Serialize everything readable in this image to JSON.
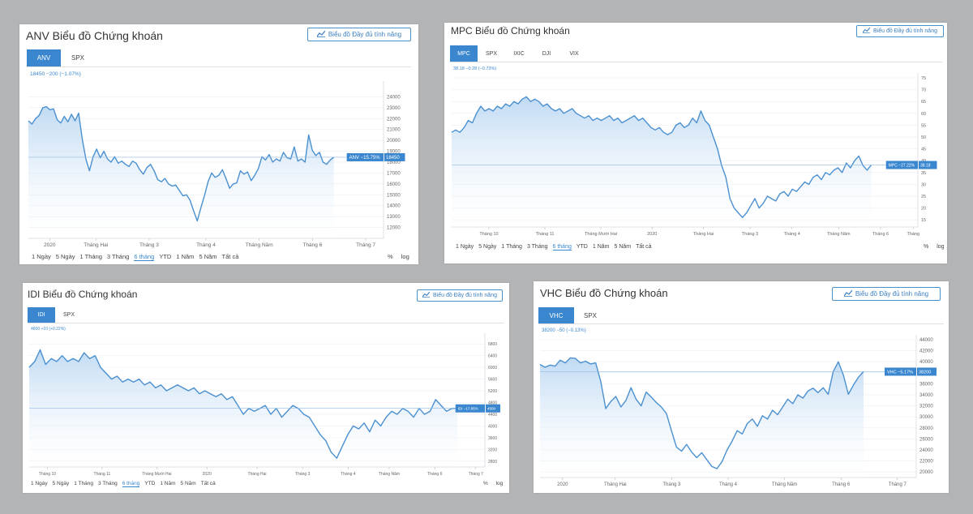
{
  "charts": [
    {
      "title": "ANV Biểu đồ Chứng khoán",
      "full_button": "Biểu đồ Đầy đủ tính năng",
      "tabs": [
        "ANV",
        "SPX"
      ],
      "active_tab": 0,
      "quote": "18450 −200 (−1.07%)",
      "price_tag": "ANV −15.75%",
      "price_value": "18450",
      "ranges": [
        "1 Ngày",
        "5 Ngày",
        "1 Tháng",
        "3 Tháng",
        "6 tháng",
        "YTD",
        "1 Năm",
        "5 Năm",
        "Tất cả"
      ],
      "selected_range": 4,
      "options": [
        "%",
        "log"
      ]
    },
    {
      "title": "MPC Biểu đồ Chứng khoán",
      "full_button": "Biểu đồ Đầy đủ tính năng",
      "tabs": [
        "MPC",
        "SPX",
        "IXIC",
        "DJI",
        "VIX"
      ],
      "active_tab": 0,
      "quote": "38.18 −0.28 (−0.73%)",
      "price_tag": "MPC −27.22%",
      "price_value": "38.18",
      "ranges": [
        "1 Ngày",
        "5 Ngày",
        "1 Tháng",
        "3 Tháng",
        "6 tháng",
        "YTD",
        "1 Năm",
        "5 Năm",
        "Tất cả"
      ],
      "selected_range": 4,
      "options": [
        "%",
        "log"
      ]
    },
    {
      "title": "IDI Biểu đồ Chứng khoán",
      "full_button": "Biểu đồ Đầy đủ tính năng",
      "tabs": [
        "IDI",
        "SPX"
      ],
      "active_tab": 0,
      "quote": "4600 +10 (+0.22%)",
      "price_tag": "IDI −17.85%",
      "price_value": "4600",
      "ranges": [
        "1 Ngày",
        "5 Ngày",
        "1 Tháng",
        "3 Tháng",
        "6 tháng",
        "YTD",
        "1 Năm",
        "5 Năm",
        "Tất cả"
      ],
      "selected_range": 4,
      "options": [
        "%",
        "log"
      ]
    },
    {
      "title": "VHC Biểu đồ Chứng khoán",
      "full_button": "Biểu đồ Đầy đủ tính năng",
      "tabs": [
        "VHC",
        "SPX"
      ],
      "active_tab": 0,
      "quote": "38200 −50 (−0.13%)",
      "price_tag": "VHC −5.17%",
      "price_value": "38200",
      "ranges": [],
      "selected_range": -1,
      "options": []
    }
  ],
  "colors": {
    "line": "#4a90d0",
    "accent": "#3a87d0",
    "fill_top": "#b9d6f2",
    "grid": "#e9eef3"
  },
  "chart_data": [
    {
      "type": "area",
      "title": "ANV Biểu đồ Chứng khoán",
      "ylim": [
        11000,
        25000
      ],
      "yticks": [
        12000,
        13000,
        14000,
        15000,
        16000,
        17000,
        18000,
        19000,
        20000,
        21000,
        22000,
        23000,
        24000
      ],
      "xticks": [
        "2020",
        "Tháng Hai",
        "Tháng 3",
        "Tháng 4",
        "Tháng Năm",
        "Tháng 6",
        "Tháng 7"
      ],
      "xtick_pos": [
        0.06,
        0.19,
        0.34,
        0.5,
        0.65,
        0.8,
        0.95
      ],
      "last_value": 18450,
      "series": [
        {
          "name": "ANV",
          "values": [
            21800,
            21500,
            22000,
            22300,
            23000,
            23100,
            22800,
            22900,
            21900,
            21600,
            22200,
            21700,
            22400,
            21800,
            22500,
            20100,
            18300,
            17200,
            18500,
            19200,
            18400,
            19000,
            18300,
            18000,
            18500,
            17900,
            18100,
            17800,
            17600,
            18100,
            17900,
            17300,
            16900,
            17500,
            17800,
            17200,
            16400,
            16200,
            16500,
            16000,
            15800,
            15900,
            15400,
            14900,
            15000,
            14500,
            13500,
            12600,
            13800,
            14900,
            16200,
            17000,
            16600,
            16800,
            17300,
            16500,
            15600,
            16000,
            16100,
            17200,
            16900,
            17100,
            16300,
            16800,
            17400,
            18500,
            18200,
            18700,
            18000,
            18300,
            18100,
            18900,
            18400,
            18300,
            19400,
            18100,
            18300,
            18000,
            20500,
            19100,
            18600,
            18900,
            18000,
            17800,
            18200,
            18450
          ]
        }
      ]
    },
    {
      "type": "area",
      "title": "MPC Biểu đồ Chứng khoán",
      "ylim": [
        12,
        75
      ],
      "yticks": [
        15,
        20,
        25,
        30,
        35,
        40,
        45,
        50,
        55,
        60,
        65,
        70,
        75
      ],
      "xticks": [
        "Tháng 10",
        "Tháng 11",
        "Tháng Mười Hai",
        "2020",
        "Tháng Hai",
        "Tháng 3",
        "Tháng 4",
        "Tháng Năm",
        "Tháng 6",
        "Tháng"
      ],
      "xtick_pos": [
        0.08,
        0.2,
        0.32,
        0.43,
        0.54,
        0.64,
        0.73,
        0.83,
        0.92,
        0.99
      ],
      "last_value": 38.18,
      "series": [
        {
          "name": "MPC",
          "values": [
            52,
            53,
            52,
            54,
            57,
            56,
            60,
            63,
            61,
            62,
            61,
            63,
            62,
            64,
            63,
            65,
            64,
            66,
            67,
            65,
            66,
            65,
            63,
            64,
            62,
            61,
            62,
            60,
            61,
            62,
            60,
            59,
            58,
            59,
            57,
            58,
            57,
            58,
            59,
            57,
            58,
            56,
            57,
            58,
            59,
            57,
            58,
            56,
            54,
            53,
            54,
            52,
            51,
            52,
            55,
            56,
            54,
            55,
            58,
            56,
            61,
            57,
            55,
            50,
            45,
            38,
            33,
            24,
            20,
            18,
            16,
            18,
            21,
            24,
            20,
            22,
            25,
            24,
            23,
            26,
            27,
            25,
            28,
            27,
            29,
            31,
            30,
            33,
            34,
            32,
            35,
            34,
            36,
            37,
            35,
            39,
            37,
            40,
            42,
            38,
            36,
            38.18
          ]
        }
      ]
    },
    {
      "type": "area",
      "title": "IDI Biểu đồ Chứng khoán",
      "ylim": [
        2600,
        7000
      ],
      "yticks": [
        2800,
        3200,
        3600,
        4000,
        4400,
        4800,
        5200,
        5600,
        6000,
        6400,
        6800
      ],
      "xticks": [
        "Tháng 10",
        "Tháng 11",
        "Tháng Mười Hai",
        "2020",
        "Tháng Hai",
        "Tháng 3",
        "Tháng 4",
        "Tháng Năm",
        "Tháng 6",
        "Tháng 7"
      ],
      "xtick_pos": [
        0.04,
        0.16,
        0.28,
        0.39,
        0.5,
        0.6,
        0.7,
        0.79,
        0.89,
        0.98
      ],
      "last_value": 4600,
      "series": [
        {
          "name": "IDI",
          "values": [
            6000,
            6200,
            6600,
            6100,
            6300,
            6200,
            6400,
            6200,
            6300,
            6200,
            6500,
            6300,
            6400,
            6000,
            5800,
            5600,
            5700,
            5500,
            5600,
            5500,
            5600,
            5400,
            5500,
            5300,
            5400,
            5200,
            5300,
            5400,
            5300,
            5200,
            5300,
            5100,
            5200,
            5100,
            5000,
            5100,
            4900,
            5000,
            4700,
            4400,
            4600,
            4500,
            4600,
            4700,
            4400,
            4600,
            4300,
            4500,
            4700,
            4600,
            4400,
            4300,
            4000,
            3700,
            3500,
            3100,
            2900,
            3300,
            3700,
            4000,
            3900,
            4100,
            3800,
            4200,
            4000,
            4300,
            4500,
            4400,
            4600,
            4500,
            4300,
            4600,
            4400,
            4500,
            4900,
            4700,
            4500,
            4600,
            4600
          ]
        }
      ]
    },
    {
      "type": "area",
      "title": "VHC Biểu đồ Chứng khoán",
      "ylim": [
        19000,
        44000
      ],
      "yticks": [
        20000,
        22000,
        24000,
        26000,
        28000,
        30000,
        32000,
        34000,
        36000,
        38000,
        40000,
        42000,
        44000
      ],
      "xticks": [
        "2020",
        "Tháng Hai",
        "Tháng 3",
        "Tháng 4",
        "Tháng Năm",
        "Tháng 6",
        "Tháng 7"
      ],
      "xtick_pos": [
        0.06,
        0.2,
        0.35,
        0.5,
        0.65,
        0.8,
        0.95
      ],
      "last_value": 38200,
      "series": [
        {
          "name": "VHC",
          "values": [
            39500,
            39000,
            39400,
            39200,
            40300,
            39800,
            40700,
            40600,
            39800,
            40100,
            39600,
            39800,
            36500,
            31500,
            32800,
            33700,
            31800,
            33000,
            35300,
            33200,
            32000,
            34500,
            33600,
            32600,
            31800,
            30600,
            27500,
            24500,
            23800,
            25000,
            23600,
            22600,
            23500,
            22200,
            21000,
            20600,
            21900,
            24000,
            25600,
            27500,
            26900,
            28800,
            29600,
            28300,
            30200,
            29600,
            31200,
            30400,
            31800,
            33200,
            32400,
            34000,
            33400,
            34700,
            35200,
            34400,
            35300,
            34100,
            38200,
            40000,
            37600,
            34100,
            35800,
            37200,
            38200
          ]
        }
      ]
    }
  ]
}
